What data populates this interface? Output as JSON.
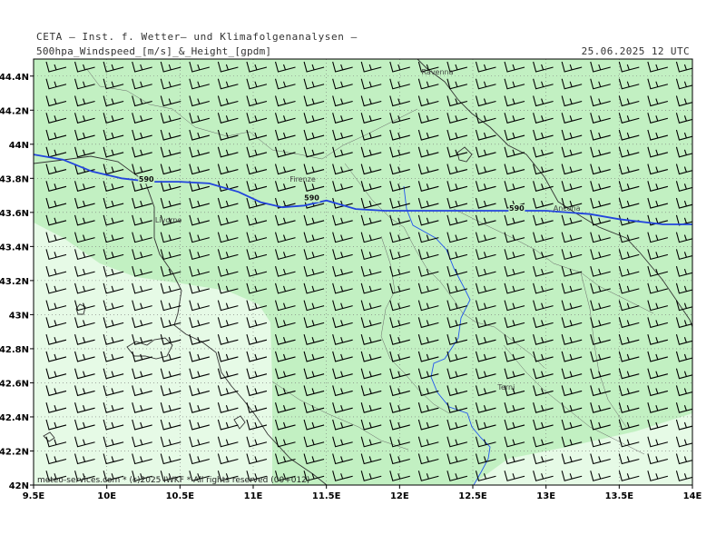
{
  "header": {
    "title_line1": "CETA – Inst. f. Wetter– und Klimafolgenanalysen –",
    "title_line2": "500hpa_Windspeed_[m/s]_&_Height_[gpdm]",
    "datetime": "25.06.2025 12 UTC"
  },
  "footer": {
    "copyright": "meteo-services.com * (c)2025 IWKF * All rights reserved (00+012)"
  },
  "map": {
    "lon_range": [
      9.5,
      14.0
    ],
    "lat_range": [
      42.0,
      44.5
    ],
    "lon_ticks": [
      {
        "value": 9.5,
        "label": "9.5E"
      },
      {
        "value": 10.0,
        "label": "10E"
      },
      {
        "value": 10.5,
        "label": "10.5E"
      },
      {
        "value": 11.0,
        "label": "11E"
      },
      {
        "value": 11.5,
        "label": "11.5E"
      },
      {
        "value": 12.0,
        "label": "12E"
      },
      {
        "value": 12.5,
        "label": "12.5E"
      },
      {
        "value": 13.0,
        "label": "13E"
      },
      {
        "value": 13.5,
        "label": "13.5E"
      },
      {
        "value": 14.0,
        "label": "14E"
      }
    ],
    "lat_ticks": [
      {
        "value": 42.0,
        "label": "42N"
      },
      {
        "value": 42.2,
        "label": "42.2N"
      },
      {
        "value": 42.4,
        "label": "42.4N"
      },
      {
        "value": 42.6,
        "label": "42.6N"
      },
      {
        "value": 42.8,
        "label": "42.8N"
      },
      {
        "value": 43.0,
        "label": "43N"
      },
      {
        "value": 43.2,
        "label": "43.2N"
      },
      {
        "value": 43.4,
        "label": "43.4N"
      },
      {
        "value": 43.6,
        "label": "43.6N"
      },
      {
        "value": 43.8,
        "label": "43.8N"
      },
      {
        "value": 44.0,
        "label": "44N"
      },
      {
        "value": 44.2,
        "label": "44.2N"
      },
      {
        "value": 44.4,
        "label": "44.4N"
      }
    ],
    "cities": [
      {
        "name": "Ravenna",
        "lon": 12.15,
        "lat": 44.41
      },
      {
        "name": "Firenze",
        "lon": 11.25,
        "lat": 43.78
      },
      {
        "name": "Livorno",
        "lon": 10.33,
        "lat": 43.54
      },
      {
        "name": "Ancona",
        "lon": 13.05,
        "lat": 43.61
      },
      {
        "name": "Terni",
        "lon": 12.67,
        "lat": 42.56
      }
    ],
    "height_contour": {
      "value": 590,
      "labels": [
        {
          "text": "590",
          "lon": 10.27,
          "lat": 43.78
        },
        {
          "text": "590",
          "lon": 11.4,
          "lat": 43.67
        },
        {
          "text": "590",
          "lon": 12.8,
          "lat": 43.61
        }
      ],
      "points": [
        [
          9.5,
          43.94
        ],
        [
          9.7,
          43.91
        ],
        [
          9.9,
          43.84
        ],
        [
          10.1,
          43.8
        ],
        [
          10.3,
          43.78
        ],
        [
          10.5,
          43.78
        ],
        [
          10.7,
          43.77
        ],
        [
          10.9,
          43.72
        ],
        [
          11.05,
          43.66
        ],
        [
          11.2,
          43.63
        ],
        [
          11.35,
          43.64
        ],
        [
          11.5,
          43.67
        ],
        [
          11.7,
          43.62
        ],
        [
          11.9,
          43.61
        ],
        [
          12.5,
          43.61
        ],
        [
          13.0,
          43.61
        ],
        [
          13.3,
          43.59
        ],
        [
          13.5,
          43.56
        ],
        [
          13.8,
          43.53
        ],
        [
          14.0,
          43.53
        ]
      ],
      "color": "#2244dd"
    },
    "fill_colors": {
      "strong": "#c2f0c2",
      "light": "#e6fae6"
    },
    "wind": {
      "rows": 25,
      "cols": 23,
      "direction": "west"
    }
  }
}
